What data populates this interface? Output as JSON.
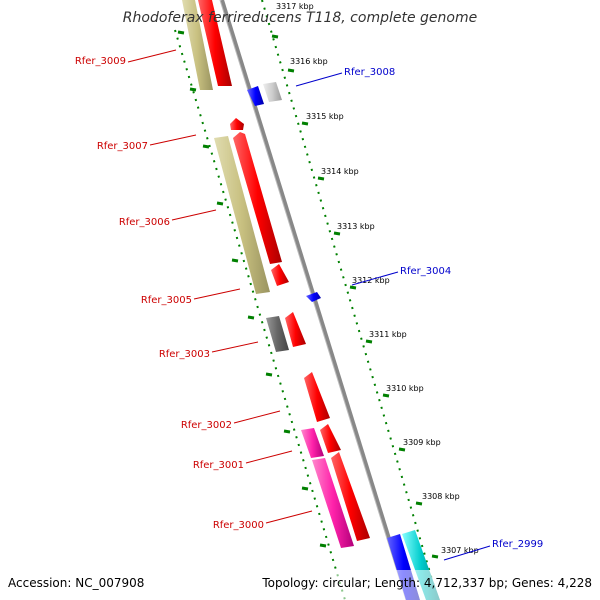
{
  "title": "Rhodoferax ferrireducens T118, complete genome",
  "footer": {
    "accession": "Accession: NC_007908",
    "summary": "Topology: circular; Length: 4,712,337 bp; Genes: 4,228"
  },
  "colors": {
    "forward_cds": "#ff0000",
    "reverse_cds": "#0000ff",
    "ruler_grey": "#888888",
    "tick_green": "#008000",
    "label_red": "#cc0000",
    "label_blue": "#0000cc",
    "olive": "#c8c080",
    "pink": "#ff22aa",
    "cyan": "#00cccc",
    "gray_feature": "#666666"
  },
  "ruler": {
    "ticks": [
      {
        "label": "3317 kbp",
        "kbp": 3317
      },
      {
        "label": "3316 kbp",
        "kbp": 3316
      },
      {
        "label": "3315 kbp",
        "kbp": 3315
      },
      {
        "label": "3314 kbp",
        "kbp": 3314
      },
      {
        "label": "3313 kbp",
        "kbp": 3313
      },
      {
        "label": "3312 kbp",
        "kbp": 3312
      },
      {
        "label": "3311 kbp",
        "kbp": 3311
      },
      {
        "label": "3310 kbp",
        "kbp": 3310
      },
      {
        "label": "3309 kbp",
        "kbp": 3309
      },
      {
        "label": "3308 kbp",
        "kbp": 3308
      },
      {
        "label": "3307 kbp",
        "kbp": 3307
      }
    ]
  },
  "genes_left": [
    {
      "label": "Rfer_3009",
      "name": "rfer-3009"
    },
    {
      "label": "Rfer_3007",
      "name": "rfer-3007"
    },
    {
      "label": "Rfer_3006",
      "name": "rfer-3006"
    },
    {
      "label": "Rfer_3005",
      "name": "rfer-3005"
    },
    {
      "label": "Rfer_3003",
      "name": "rfer-3003"
    },
    {
      "label": "Rfer_3002",
      "name": "rfer-3002"
    },
    {
      "label": "Rfer_3001",
      "name": "rfer-3001"
    },
    {
      "label": "Rfer_3000",
      "name": "rfer-3000"
    }
  ],
  "genes_right": [
    {
      "label": "Rfer_3008",
      "name": "rfer-3008"
    },
    {
      "label": "Rfer_3004",
      "name": "rfer-3004"
    },
    {
      "label": "Rfer_2999",
      "name": "rfer-2999"
    }
  ]
}
